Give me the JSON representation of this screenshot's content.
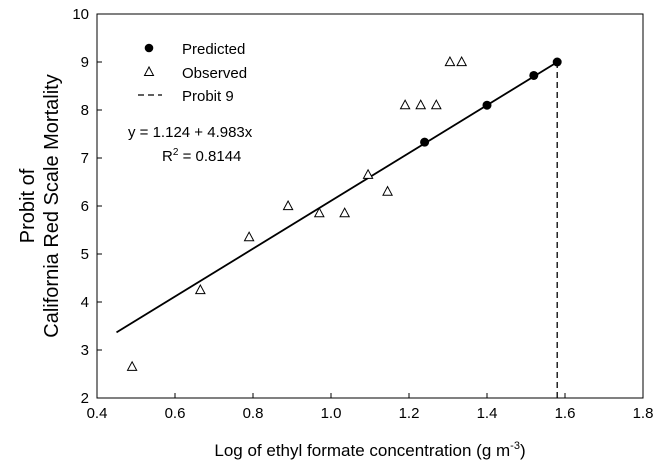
{
  "chart_data": {
    "type": "scatter",
    "xlabel": "Log of ethyl formate concentration (g m",
    "xlabel_sup": "-3",
    "xlabel_end": ")",
    "ylabel": [
      "Probit of",
      "California Red Scale Mortality"
    ],
    "xlim": [
      0.4,
      1.8
    ],
    "ylim": [
      2,
      10
    ],
    "x_ticks": [
      "0.4",
      "0.6",
      "0.8",
      "1.0",
      "1.2",
      "1.4",
      "1.6",
      "1.8"
    ],
    "y_ticks": [
      "2",
      "3",
      "4",
      "5",
      "6",
      "7",
      "8",
      "9",
      "10"
    ],
    "grid": false,
    "legend": {
      "position": "top-left",
      "entries": [
        {
          "label": "Predicted",
          "marker": "filled-circle"
        },
        {
          "label": "Observed",
          "marker": "open-triangle"
        },
        {
          "label": "Probit 9",
          "marker": "dashed-line"
        }
      ]
    },
    "equation": {
      "line1": "y = 1.124 + 4.983x",
      "r2_prefix": "R",
      "r2_sup": "2",
      "r2_suffix": " = 0.8144"
    },
    "series": [
      {
        "name": "Predicted",
        "marker": "filled-circle",
        "x": [
          1.24,
          1.4,
          1.52,
          1.58
        ],
        "y": [
          7.33,
          8.1,
          8.72,
          9.0
        ]
      },
      {
        "name": "Observed",
        "marker": "open-triangle",
        "x": [
          0.49,
          0.665,
          0.79,
          0.89,
          0.97,
          1.035,
          1.095,
          1.145,
          1.19,
          1.23,
          1.27,
          1.305,
          1.335
        ],
        "y": [
          2.65,
          4.25,
          5.35,
          6.0,
          5.85,
          5.85,
          6.65,
          6.3,
          8.1,
          8.1,
          8.1,
          9.0,
          9.0
        ]
      }
    ],
    "regression": {
      "intercept": 1.124,
      "slope": 4.983,
      "x_range": [
        0.45,
        1.58
      ]
    },
    "probit9_line": {
      "x": 1.58,
      "y_range": [
        2,
        9
      ]
    },
    "colors": {
      "marker": "#000000",
      "line": "#000000",
      "axes": "#000000"
    }
  }
}
